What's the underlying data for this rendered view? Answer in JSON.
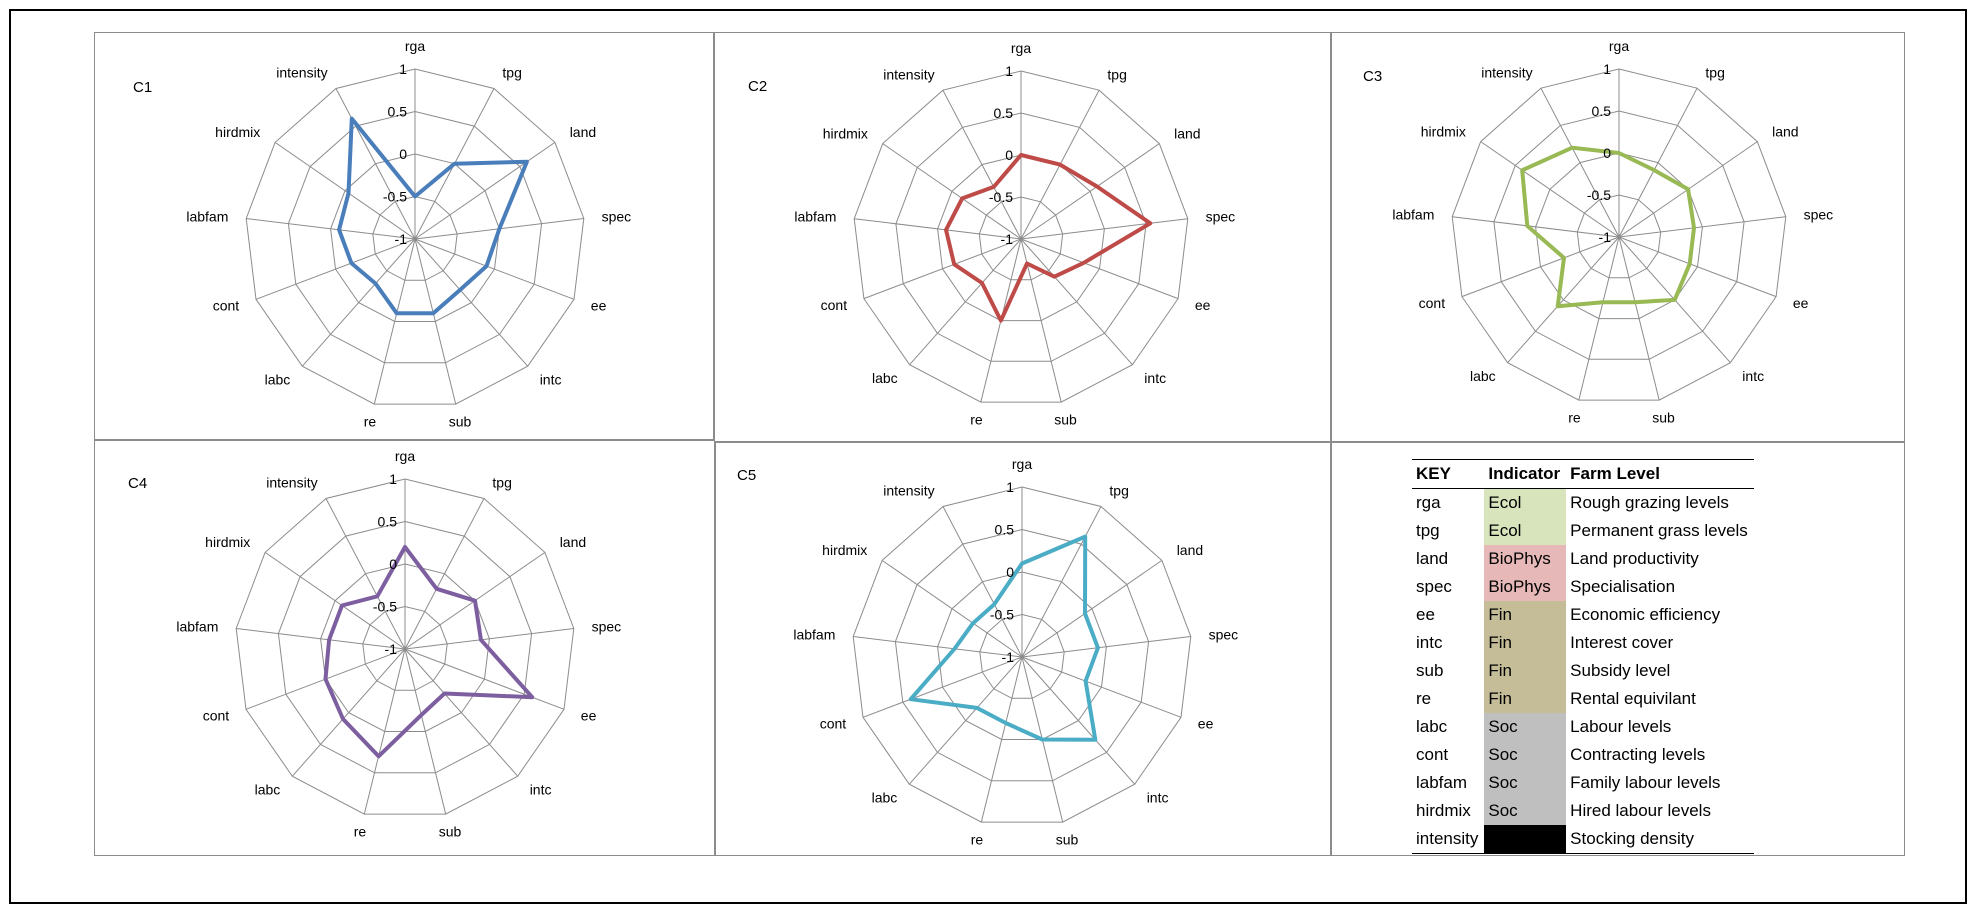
{
  "chart_data": [
    {
      "type": "radar",
      "title": "C1",
      "axes": [
        "rga",
        "tpg",
        "land",
        "spec",
        "ee",
        "intc",
        "sub",
        "re",
        "labc",
        "cont",
        "labfam",
        "hirdmix",
        "intensity"
      ],
      "rticks": [
        "1",
        "0.5",
        "0",
        "-0.5",
        "-1"
      ],
      "rlim": [
        -1,
        1
      ],
      "color": "#4a7ebb",
      "values": [
        -0.5,
        0.0,
        0.6,
        0.0,
        -0.1,
        -0.2,
        -0.1,
        -0.1,
        -0.3,
        -0.2,
        -0.1,
        -0.05,
        0.6
      ]
    },
    {
      "type": "radar",
      "title": "C2",
      "axes": [
        "rga",
        "tpg",
        "land",
        "spec",
        "ee",
        "intc",
        "sub",
        "re",
        "labc",
        "cont",
        "labfam",
        "hirdmix",
        "intensity"
      ],
      "rticks": [
        "1",
        "0.5",
        "0",
        "-0.5",
        "-1"
      ],
      "rlim": [
        -1,
        1
      ],
      "color": "#be4b48",
      "values": [
        0.0,
        0.0,
        0.1,
        0.55,
        -0.2,
        -0.4,
        -0.7,
        0.0,
        -0.3,
        -0.15,
        -0.1,
        -0.15,
        -0.3
      ]
    },
    {
      "type": "radar",
      "title": "C3",
      "axes": [
        "rga",
        "tpg",
        "land",
        "spec",
        "ee",
        "intc",
        "sub",
        "re",
        "labc",
        "cont",
        "labfam",
        "hirdmix",
        "intensity"
      ],
      "rticks": [
        "1",
        "0.5",
        "0",
        "-0.5",
        "-1"
      ],
      "rlim": [
        -1,
        1
      ],
      "color": "#98b954",
      "values": [
        0.0,
        -0.1,
        0.0,
        -0.1,
        -0.1,
        0.0,
        -0.2,
        -0.2,
        0.1,
        -0.3,
        0.1,
        0.4,
        0.2
      ]
    },
    {
      "type": "radar",
      "title": "C4",
      "axes": [
        "rga",
        "tpg",
        "land",
        "spec",
        "ee",
        "intc",
        "sub",
        "re",
        "labc",
        "cont",
        "labfam",
        "hirdmix",
        "intensity"
      ],
      "rticks": [
        "1",
        "0.5",
        "0",
        "-0.5",
        "-1"
      ],
      "rlim": [
        -1,
        1
      ],
      "color": "#7d5fa0",
      "values": [
        0.2,
        -0.2,
        0.0,
        -0.1,
        0.6,
        -0.3,
        -0.2,
        0.3,
        0.1,
        0.0,
        -0.1,
        -0.1,
        -0.3
      ]
    },
    {
      "type": "radar",
      "title": "C5",
      "axes": [
        "rga",
        "tpg",
        "land",
        "spec",
        "ee",
        "intc",
        "sub",
        "re",
        "labc",
        "cont",
        "labfam",
        "hirdmix",
        "intensity"
      ],
      "rticks": [
        "1",
        "0.5",
        "0",
        "-0.5",
        "-1"
      ],
      "rlim": [
        -1,
        1
      ],
      "color": "#4bacc6",
      "values": [
        0.1,
        0.6,
        -0.1,
        -0.1,
        -0.2,
        0.3,
        0.0,
        -0.2,
        -0.2,
        0.4,
        -0.2,
        -0.3,
        -0.3
      ]
    }
  ],
  "key": {
    "headers": [
      "KEY",
      "Indicator",
      "Farm Level"
    ],
    "rows": [
      {
        "key": "rga",
        "indicator": "Ecol",
        "level": "Rough grazing levels",
        "color": "#d8e4bc"
      },
      {
        "key": "tpg",
        "indicator": "Ecol",
        "level": "Permanent grass levels",
        "color": "#d8e4bc"
      },
      {
        "key": "land",
        "indicator": "BioPhys",
        "level": "Land productivity",
        "color": "#e6b8b7"
      },
      {
        "key": "spec",
        "indicator": "BioPhys",
        "level": "Specialisation",
        "color": "#e6b8b7"
      },
      {
        "key": "ee",
        "indicator": "Fin",
        "level": "Economic efficiency",
        "color": "#c4bd97"
      },
      {
        "key": "intc",
        "indicator": "Fin",
        "level": "Interest cover",
        "color": "#c4bd97"
      },
      {
        "key": "sub",
        "indicator": "Fin",
        "level": "Subsidy level",
        "color": "#c4bd97"
      },
      {
        "key": "re",
        "indicator": "Fin",
        "level": "Rental equivilant",
        "color": "#c4bd97"
      },
      {
        "key": "labc",
        "indicator": "Soc",
        "level": "Labour levels",
        "color": "#bfbfbf"
      },
      {
        "key": "cont",
        "indicator": "Soc",
        "level": "Contracting levels",
        "color": "#bfbfbf"
      },
      {
        "key": "labfam",
        "indicator": "Soc",
        "level": "Family labour levels",
        "color": "#bfbfbf"
      },
      {
        "key": "hirdmix",
        "indicator": "Soc",
        "level": "Hired labour levels",
        "color": "#bfbfbf"
      },
      {
        "key": "intensity",
        "indicator": "",
        "level": "Stocking density",
        "color": "#000000"
      }
    ]
  }
}
